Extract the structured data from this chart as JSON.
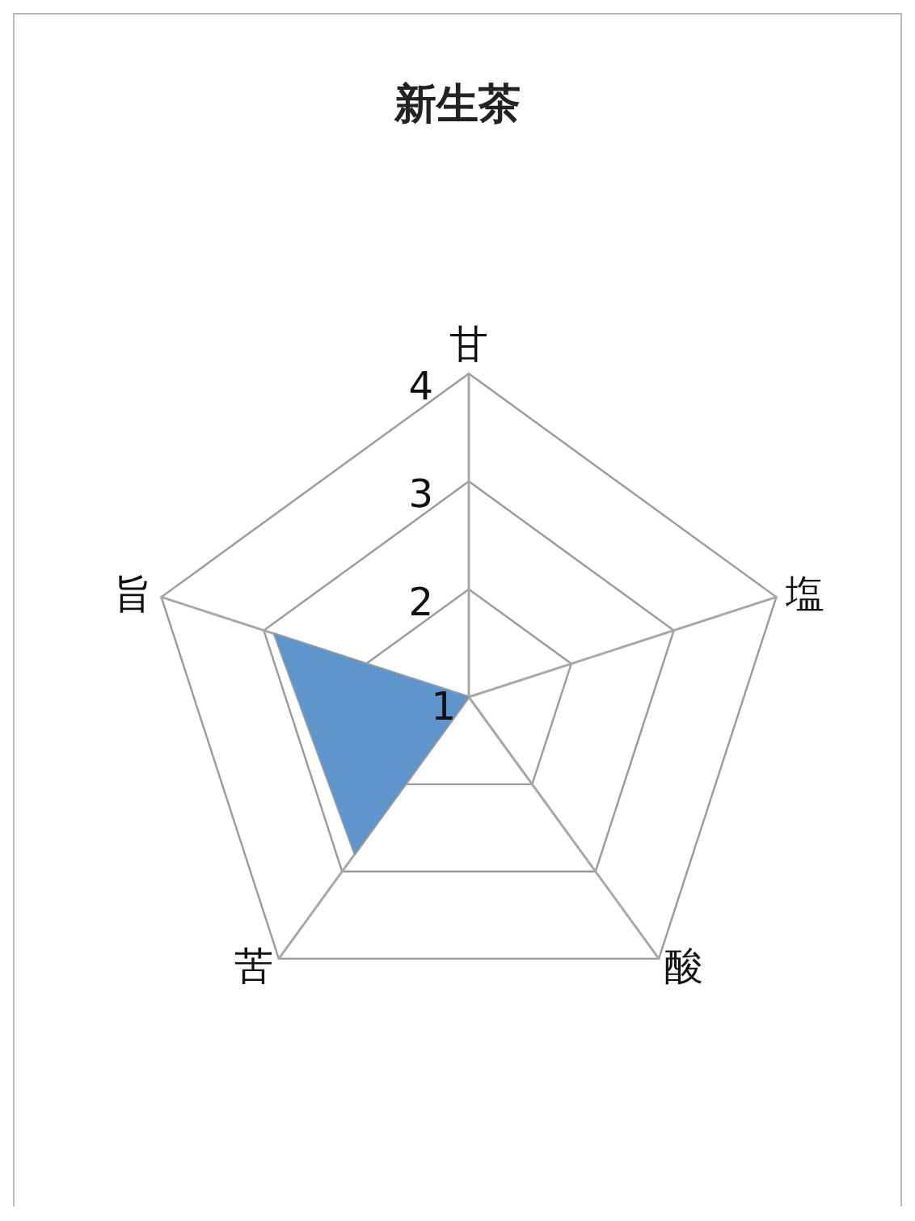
{
  "chart_data": {
    "type": "radar",
    "title": "新生茶",
    "categories": [
      "甘",
      "塩",
      "酸",
      "苦",
      "旨"
    ],
    "ylim": [
      1,
      4
    ],
    "yticks": [
      1,
      2,
      3,
      4
    ],
    "series": [
      {
        "color": "#5e95cb",
        "values": [
          1,
          1,
          1,
          2.8,
          2.9
        ]
      }
    ]
  }
}
